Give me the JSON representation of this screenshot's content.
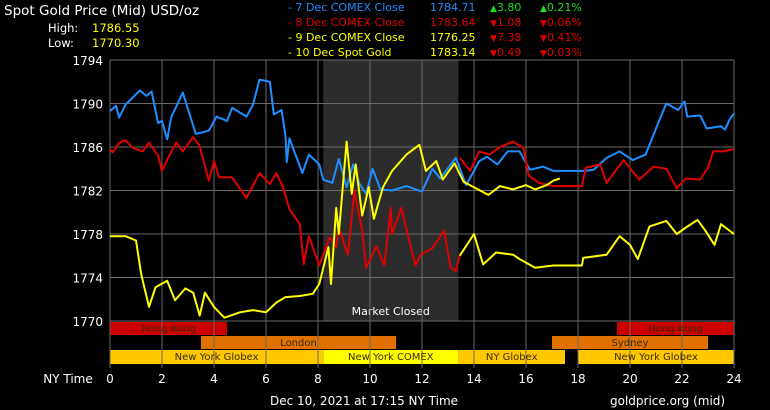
{
  "header": {
    "title": "Spot Gold Price (Mid) USD/oz",
    "high_label": "High:",
    "high_value": "1786.55",
    "low_label": "Low:",
    "low_value": "1770.30"
  },
  "legend": [
    {
      "label": "- 7 Dec COMEX Close",
      "price": "1784.71",
      "change": "3.80",
      "pct": "0.21%",
      "color": "#1e8fff",
      "dir": "up"
    },
    {
      "label": "- 8 Dec COMEX Close",
      "price": "1783.64",
      "change": "1.08",
      "pct": "0.06%",
      "color": "#e00000",
      "dir": "down"
    },
    {
      "label": "- 9 Dec COMEX Close",
      "price": "1776.25",
      "change": "7.38",
      "pct": "0.41%",
      "color": "#ffff00",
      "dir": "down"
    },
    {
      "label": "- 10 Dec Spot Gold",
      "price": "1783.14",
      "change": "0.49",
      "pct": "0.03%",
      "color": "#ffff00",
      "dir": "down"
    }
  ],
  "footer": {
    "timestamp": "Dec 10, 2021 at 17:15 NY Time",
    "source": "goldprice.org (mid)"
  },
  "chart_data": {
    "type": "line",
    "xlabel": "NY Time",
    "xlim": [
      0,
      24
    ],
    "ylim": [
      1770,
      1794
    ],
    "xticks": [
      0,
      2,
      4,
      6,
      8,
      10,
      12,
      14,
      16,
      18,
      20,
      22,
      24
    ],
    "yticks": [
      1794,
      1790,
      1786,
      1782,
      1778,
      1774,
      1770
    ],
    "grid": true,
    "shaded_region": {
      "label": "Market Closed",
      "x": [
        8.2,
        13.4
      ]
    },
    "sessions": [
      {
        "label": "Hong Kong",
        "row": 0,
        "x": [
          0,
          4.5
        ],
        "color": "#cc0000"
      },
      {
        "label": "Hong Kong",
        "row": 0,
        "x": [
          19.5,
          24
        ],
        "color": "#cc0000"
      },
      {
        "label": "London",
        "row": 1,
        "x": [
          3.5,
          11
        ],
        "color": "#e07000"
      },
      {
        "label": "Sydney",
        "row": 1,
        "x": [
          17,
          23
        ],
        "color": "#e07000"
      },
      {
        "label": "New York Globex",
        "row": 2,
        "x": [
          0,
          8.2
        ],
        "color": "#ffc800"
      },
      {
        "label": "New York COMEX",
        "row": 2,
        "x": [
          8.2,
          13.4
        ],
        "color": "#ffff00"
      },
      {
        "label": "NY Globex",
        "row": 2,
        "x": [
          13.4,
          17.5
        ],
        "color": "#ffc800"
      },
      {
        "label": "New York Globex",
        "row": 2,
        "x": [
          18,
          24
        ],
        "color": "#ffc800"
      }
    ],
    "series": [
      {
        "name": "7 Dec COMEX Close",
        "color": "#1e8fff",
        "points": [
          [
            0,
            1789.3
          ],
          [
            0.23,
            1789.8
          ],
          [
            0.35,
            1788.7
          ],
          [
            0.6,
            1789.9
          ],
          [
            1.15,
            1791.2
          ],
          [
            1.4,
            1790.7
          ],
          [
            1.6,
            1791.1
          ],
          [
            1.85,
            1788.2
          ],
          [
            2.0,
            1788.4
          ],
          [
            2.2,
            1786.7
          ],
          [
            2.35,
            1788.7
          ],
          [
            2.8,
            1791
          ],
          [
            3.3,
            1787.2
          ],
          [
            3.8,
            1787.5
          ],
          [
            4.1,
            1788.8
          ],
          [
            4.5,
            1788.4
          ],
          [
            4.7,
            1789.6
          ],
          [
            5.25,
            1788.8
          ],
          [
            5.5,
            1789.9
          ],
          [
            5.75,
            1792.2
          ],
          [
            6.15,
            1792
          ],
          [
            6.3,
            1789
          ],
          [
            6.6,
            1789.4
          ],
          [
            6.75,
            1787
          ],
          [
            6.8,
            1784.6
          ],
          [
            6.9,
            1786.8
          ],
          [
            7.4,
            1783.6
          ],
          [
            7.65,
            1785.3
          ],
          [
            8.05,
            1784.4
          ],
          [
            8.2,
            1783
          ],
          [
            8.55,
            1782.7
          ],
          [
            8.8,
            1784.9
          ],
          [
            9.1,
            1782.3
          ],
          [
            9.35,
            1784.4
          ],
          [
            9.6,
            1782.6
          ],
          [
            9.85,
            1781.7
          ],
          [
            10.1,
            1784
          ],
          [
            10.4,
            1782.1
          ],
          [
            10.85,
            1782
          ],
          [
            11.4,
            1782.4
          ],
          [
            12.0,
            1781.9
          ],
          [
            12.4,
            1784
          ],
          [
            12.7,
            1783.1
          ],
          [
            13.3,
            1785
          ],
          [
            13.7,
            1782.5
          ],
          [
            14.2,
            1784.7
          ],
          [
            14.5,
            1785.1
          ],
          [
            14.9,
            1784.4
          ],
          [
            15.3,
            1785.6
          ],
          [
            15.75,
            1785.6
          ],
          [
            16.15,
            1783.9
          ],
          [
            16.65,
            1784.2
          ],
          [
            17.05,
            1783.8
          ],
          [
            18.25,
            1783.8
          ],
          [
            18.6,
            1783.9
          ],
          [
            19.1,
            1785
          ],
          [
            19.6,
            1785.6
          ],
          [
            20.1,
            1784.8
          ],
          [
            20.6,
            1785.3
          ],
          [
            21.1,
            1788.3
          ],
          [
            21.4,
            1790
          ],
          [
            21.85,
            1789.4
          ],
          [
            22.1,
            1790.2
          ],
          [
            22.2,
            1788.8
          ],
          [
            22.7,
            1788.9
          ],
          [
            22.95,
            1787.7
          ],
          [
            23.5,
            1787.9
          ],
          [
            23.65,
            1787.6
          ],
          [
            23.85,
            1788.6
          ],
          [
            24,
            1789.1
          ]
        ]
      },
      {
        "name": "8 Dec COMEX Close",
        "color": "#e00000",
        "points": [
          [
            0,
            1785.8
          ],
          [
            0.1,
            1785.5
          ],
          [
            0.35,
            1786.4
          ],
          [
            0.6,
            1786.6
          ],
          [
            0.9,
            1785.9
          ],
          [
            1.25,
            1785.6
          ],
          [
            1.5,
            1786.4
          ],
          [
            1.85,
            1785.2
          ],
          [
            2.0,
            1783.8
          ],
          [
            2.3,
            1785.3
          ],
          [
            2.55,
            1786.4
          ],
          [
            2.8,
            1785.6
          ],
          [
            3.2,
            1786.9
          ],
          [
            3.45,
            1786.1
          ],
          [
            3.8,
            1782.9
          ],
          [
            4.0,
            1784.7
          ],
          [
            4.2,
            1783.2
          ],
          [
            4.7,
            1783.2
          ],
          [
            5.25,
            1781.3
          ],
          [
            5.75,
            1783.6
          ],
          [
            6.15,
            1782.6
          ],
          [
            6.4,
            1783.6
          ],
          [
            6.65,
            1782.3
          ],
          [
            6.9,
            1780.3
          ],
          [
            7.3,
            1778.9
          ],
          [
            7.45,
            1775.2
          ],
          [
            7.65,
            1777.8
          ],
          [
            8.05,
            1775.1
          ],
          [
            8.45,
            1777.7
          ],
          [
            8.7,
            1776.8
          ],
          [
            8.8,
            1778.6
          ],
          [
            9.15,
            1776.1
          ],
          [
            9.4,
            1782
          ],
          [
            9.7,
            1778.3
          ],
          [
            9.85,
            1774.9
          ],
          [
            10.25,
            1776.9
          ],
          [
            10.55,
            1775.1
          ],
          [
            10.8,
            1780.4
          ],
          [
            10.85,
            1778
          ],
          [
            11.2,
            1780.4
          ],
          [
            11.75,
            1775.1
          ],
          [
            11.95,
            1776.1
          ],
          [
            12.4,
            1776.7
          ],
          [
            12.85,
            1778.3
          ],
          [
            13.1,
            1774.9
          ],
          [
            13.3,
            1774.6
          ],
          [
            13.45,
            1776
          ]
        ]
      },
      {
        "name": "8 Dec COMEX Close",
        "color": "#e00000",
        "points": [
          [
            13.45,
            1785
          ],
          [
            13.85,
            1783.8
          ],
          [
            14.2,
            1785.6
          ],
          [
            14.6,
            1785.3
          ],
          [
            15,
            1786
          ],
          [
            15.5,
            1786.5
          ],
          [
            15.9,
            1785.9
          ],
          [
            16.1,
            1783.4
          ],
          [
            16.5,
            1782.7
          ],
          [
            17.05,
            1782.4
          ],
          [
            18.15,
            1782.4
          ],
          [
            18.3,
            1784.1
          ],
          [
            18.85,
            1784.4
          ],
          [
            19.1,
            1782.7
          ],
          [
            19.75,
            1784.8
          ],
          [
            20.35,
            1783
          ],
          [
            20.9,
            1784.2
          ],
          [
            21.4,
            1784
          ],
          [
            21.8,
            1782.2
          ],
          [
            22.15,
            1783.1
          ],
          [
            22.7,
            1783
          ],
          [
            23.0,
            1784.1
          ],
          [
            23.2,
            1785.6
          ],
          [
            23.6,
            1785.6
          ],
          [
            24,
            1785.8
          ]
        ]
      },
      {
        "name": "9 Dec COMEX Close",
        "color": "#ffff00",
        "points": [
          [
            13.45,
            1776
          ],
          [
            14.0,
            1778
          ],
          [
            14.35,
            1775.2
          ],
          [
            14.85,
            1776.3
          ],
          [
            15.5,
            1776.1
          ],
          [
            15.75,
            1775.7
          ],
          [
            16.35,
            1774.9
          ],
          [
            17.05,
            1775.1
          ],
          [
            18.15,
            1775.1
          ],
          [
            18.2,
            1775.8
          ],
          [
            19.1,
            1776.1
          ],
          [
            19.6,
            1777.8
          ],
          [
            20.0,
            1777
          ],
          [
            20.3,
            1775.7
          ],
          [
            20.75,
            1778.7
          ],
          [
            21.4,
            1779.2
          ],
          [
            21.8,
            1778
          ],
          [
            22.15,
            1778.6
          ],
          [
            22.6,
            1779.3
          ],
          [
            22.9,
            1778.3
          ],
          [
            23.25,
            1777
          ],
          [
            23.5,
            1778.9
          ],
          [
            24,
            1778
          ]
        ]
      },
      {
        "name": "10 Dec Spot Gold",
        "color": "#ffff00",
        "points": [
          [
            0,
            1777.8
          ],
          [
            0.6,
            1777.8
          ],
          [
            1.0,
            1777.4
          ],
          [
            1.2,
            1774.3
          ],
          [
            1.5,
            1771.3
          ],
          [
            1.75,
            1773.1
          ],
          [
            2.2,
            1773.7
          ],
          [
            2.5,
            1771.9
          ],
          [
            2.9,
            1773
          ],
          [
            3.2,
            1772.6
          ],
          [
            3.45,
            1770.5
          ],
          [
            3.65,
            1772.6
          ],
          [
            4.0,
            1771.3
          ],
          [
            4.4,
            1770.3
          ],
          [
            5.0,
            1770.8
          ],
          [
            5.5,
            1771
          ],
          [
            6.0,
            1770.8
          ],
          [
            6.4,
            1771.7
          ],
          [
            6.75,
            1772.2
          ],
          [
            7.3,
            1772.3
          ],
          [
            7.8,
            1772.5
          ],
          [
            8.05,
            1773.4
          ],
          [
            8.4,
            1776.8
          ],
          [
            8.5,
            1773.4
          ],
          [
            8.7,
            1780.4
          ],
          [
            8.8,
            1778
          ],
          [
            9.1,
            1786.5
          ],
          [
            9.3,
            1781.7
          ],
          [
            9.45,
            1784.4
          ],
          [
            9.7,
            1779.7
          ],
          [
            9.95,
            1782.3
          ],
          [
            10.15,
            1779.4
          ],
          [
            10.5,
            1782.3
          ],
          [
            10.85,
            1783.8
          ],
          [
            11.4,
            1785.3
          ],
          [
            11.9,
            1786.2
          ],
          [
            12.15,
            1783.8
          ],
          [
            12.55,
            1784.7
          ],
          [
            12.8,
            1783
          ],
          [
            13.25,
            1784.5
          ],
          [
            13.6,
            1782.8
          ],
          [
            14.15,
            1782.1
          ],
          [
            14.55,
            1781.6
          ],
          [
            15.0,
            1782.4
          ],
          [
            15.5,
            1782.1
          ],
          [
            16.0,
            1782.5
          ],
          [
            16.35,
            1782.1
          ],
          [
            16.8,
            1782.5
          ],
          [
            17.05,
            1782.9
          ],
          [
            17.3,
            1783.1
          ]
        ]
      }
    ]
  }
}
